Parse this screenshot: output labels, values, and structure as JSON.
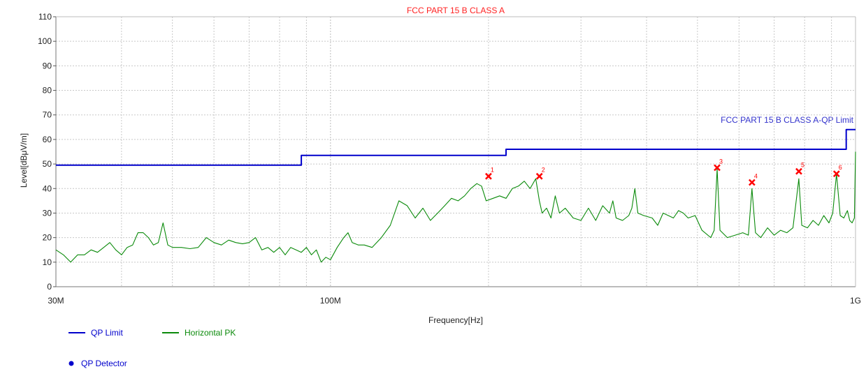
{
  "chart_data": {
    "type": "line",
    "title": "FCC PART 15 B CLASS A",
    "xlabel": "Frequency[Hz]",
    "ylabel": "Level[dBμV/m]",
    "x_scale": "log",
    "xlim": [
      30000000,
      1000000000
    ],
    "ylim": [
      0,
      110
    ],
    "grid": true,
    "legend_placement": "bottom-left",
    "x_ticks": [
      {
        "value": 30000000,
        "label": "30M"
      },
      {
        "value": 100000000,
        "label": "100M"
      },
      {
        "value": 1000000000,
        "label": "1G"
      }
    ],
    "y_ticks": [
      0,
      10,
      20,
      30,
      40,
      50,
      60,
      70,
      80,
      90,
      100,
      110
    ],
    "limit_annotation": "FCC PART 15 B CLASS A-QP Limit",
    "series": [
      {
        "name": "QP Limit",
        "color": "#0000cc",
        "style": "step",
        "points": [
          [
            30000000,
            49.5
          ],
          [
            88000000,
            49.5
          ],
          [
            88000000,
            53.5
          ],
          [
            216000000,
            53.5
          ],
          [
            216000000,
            56.0
          ],
          [
            960000000,
            56.0
          ],
          [
            960000000,
            64.0
          ],
          [
            1000000000,
            64.0
          ]
        ]
      },
      {
        "name": "Horizontal PK",
        "color": "#0a8a0a",
        "points": [
          [
            30000000,
            15
          ],
          [
            31000000,
            13
          ],
          [
            32000000,
            10
          ],
          [
            33000000,
            13
          ],
          [
            34000000,
            13
          ],
          [
            35000000,
            15
          ],
          [
            36000000,
            14
          ],
          [
            37000000,
            16
          ],
          [
            38000000,
            18
          ],
          [
            39000000,
            15
          ],
          [
            40000000,
            13
          ],
          [
            41000000,
            16
          ],
          [
            42000000,
            17
          ],
          [
            43000000,
            22
          ],
          [
            44000000,
            22
          ],
          [
            45000000,
            20
          ],
          [
            46000000,
            17
          ],
          [
            47000000,
            18
          ],
          [
            48000000,
            26
          ],
          [
            49000000,
            17
          ],
          [
            50000000,
            16
          ],
          [
            52000000,
            16
          ],
          [
            54000000,
            15.5
          ],
          [
            56000000,
            16
          ],
          [
            58000000,
            20
          ],
          [
            60000000,
            18
          ],
          [
            62000000,
            17
          ],
          [
            64000000,
            19
          ],
          [
            66000000,
            18
          ],
          [
            68000000,
            17.5
          ],
          [
            70000000,
            18
          ],
          [
            72000000,
            20
          ],
          [
            74000000,
            15
          ],
          [
            76000000,
            16
          ],
          [
            78000000,
            14
          ],
          [
            80000000,
            16
          ],
          [
            82000000,
            13
          ],
          [
            84000000,
            16
          ],
          [
            86000000,
            15
          ],
          [
            88000000,
            14
          ],
          [
            90000000,
            16
          ],
          [
            92000000,
            13
          ],
          [
            94000000,
            15
          ],
          [
            96000000,
            10
          ],
          [
            98000000,
            12
          ],
          [
            100000000,
            11
          ],
          [
            103000000,
            16
          ],
          [
            106000000,
            20
          ],
          [
            108000000,
            22
          ],
          [
            110000000,
            18
          ],
          [
            113000000,
            17
          ],
          [
            116000000,
            17
          ],
          [
            120000000,
            16
          ],
          [
            125000000,
            20
          ],
          [
            130000000,
            25
          ],
          [
            135000000,
            35
          ],
          [
            140000000,
            33
          ],
          [
            145000000,
            28
          ],
          [
            150000000,
            32
          ],
          [
            155000000,
            27
          ],
          [
            160000000,
            30
          ],
          [
            165000000,
            33
          ],
          [
            170000000,
            36
          ],
          [
            175000000,
            35
          ],
          [
            180000000,
            37
          ],
          [
            185000000,
            40
          ],
          [
            190000000,
            42
          ],
          [
            194000000,
            41
          ],
          [
            198000000,
            35
          ],
          [
            204000000,
            36
          ],
          [
            210000000,
            37
          ],
          [
            216000000,
            36
          ],
          [
            222000000,
            40
          ],
          [
            228000000,
            41
          ],
          [
            234000000,
            43
          ],
          [
            240000000,
            40
          ],
          [
            246000000,
            44
          ],
          [
            250000000,
            35
          ],
          [
            253000000,
            30
          ],
          [
            258000000,
            32
          ],
          [
            263000000,
            28
          ],
          [
            268000000,
            37
          ],
          [
            273000000,
            30
          ],
          [
            280000000,
            32
          ],
          [
            290000000,
            28
          ],
          [
            300000000,
            27
          ],
          [
            310000000,
            32
          ],
          [
            320000000,
            27
          ],
          [
            330000000,
            33
          ],
          [
            340000000,
            30
          ],
          [
            345000000,
            35
          ],
          [
            350000000,
            28
          ],
          [
            360000000,
            27
          ],
          [
            370000000,
            29
          ],
          [
            375000000,
            32
          ],
          [
            380000000,
            40
          ],
          [
            385000000,
            30
          ],
          [
            395000000,
            29
          ],
          [
            410000000,
            28
          ],
          [
            420000000,
            25
          ],
          [
            430000000,
            30
          ],
          [
            440000000,
            29
          ],
          [
            450000000,
            28
          ],
          [
            460000000,
            31
          ],
          [
            470000000,
            30
          ],
          [
            480000000,
            28
          ],
          [
            495000000,
            29
          ],
          [
            510000000,
            23
          ],
          [
            530000000,
            20
          ],
          [
            538000000,
            23
          ],
          [
            545000000,
            48
          ],
          [
            552000000,
            23
          ],
          [
            570000000,
            20
          ],
          [
            590000000,
            21
          ],
          [
            610000000,
            22
          ],
          [
            625000000,
            21
          ],
          [
            635000000,
            40
          ],
          [
            645000000,
            22
          ],
          [
            660000000,
            20
          ],
          [
            680000000,
            24
          ],
          [
            700000000,
            21
          ],
          [
            720000000,
            23
          ],
          [
            740000000,
            22
          ],
          [
            760000000,
            24
          ],
          [
            780000000,
            44
          ],
          [
            790000000,
            25
          ],
          [
            810000000,
            24
          ],
          [
            830000000,
            27
          ],
          [
            850000000,
            25
          ],
          [
            870000000,
            29
          ],
          [
            890000000,
            26
          ],
          [
            905000000,
            30
          ],
          [
            920000000,
            46
          ],
          [
            935000000,
            29
          ],
          [
            950000000,
            28
          ],
          [
            965000000,
            31
          ],
          [
            975000000,
            27
          ],
          [
            985000000,
            26
          ],
          [
            995000000,
            28
          ],
          [
            1000000000,
            55
          ]
        ]
      }
    ],
    "markers": [
      {
        "label": "1",
        "x": 200000000,
        "y": 45
      },
      {
        "label": "2",
        "x": 250000000,
        "y": 45
      },
      {
        "label": "3",
        "x": 545000000,
        "y": 48.5
      },
      {
        "label": "4",
        "x": 635000000,
        "y": 42.5
      },
      {
        "label": "5",
        "x": 780000000,
        "y": 47
      },
      {
        "label": "6",
        "x": 920000000,
        "y": 46
      }
    ],
    "marker_color": "#ff0000",
    "legend": [
      {
        "label": "QP Limit",
        "kind": "line",
        "color": "#0000cc"
      },
      {
        "label": "Horizontal PK",
        "kind": "line",
        "color": "#0a8a0a"
      },
      {
        "label": "QP Detector",
        "kind": "dot",
        "color": "#0000cc"
      }
    ]
  }
}
